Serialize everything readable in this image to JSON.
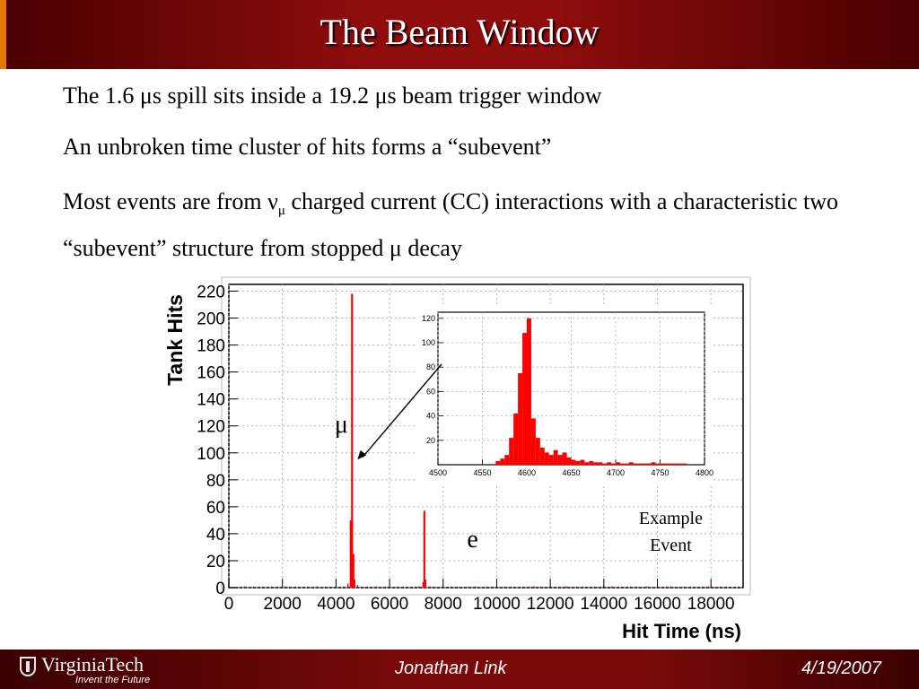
{
  "slide": {
    "title": "The Beam Window",
    "bullets": [
      {
        "parts": [
          "The 1.6 μs spill sits inside a 19.2 μs beam trigger window"
        ]
      },
      {
        "parts": [
          "An unbroken time cluster of hits forms a “subevent”"
        ]
      },
      {
        "parts": [
          "Most events are from ν",
          "μ",
          " charged current (CC) interactions with a characteristic  two “subevent” structure from stopped μ decay"
        ]
      }
    ]
  },
  "footer": {
    "logo_text": "VirginiaTech",
    "logo_tagline": "Invent the Future",
    "author": "Jonathan Link",
    "date": "4/19/2007"
  },
  "colors": {
    "title_bar": "#8f0d0d",
    "footer_bar": "#7a0a0a",
    "accent": "#e07a00",
    "series": "#ff0000",
    "arrow": "#000000"
  },
  "chart_data": [
    {
      "type": "bar",
      "title": "",
      "xlabel": "Hit Time (ns)",
      "ylabel": "Tank Hits",
      "xlim": [
        0,
        19200
      ],
      "ylim": [
        0,
        225
      ],
      "x_ticks": [
        0,
        2000,
        4000,
        6000,
        8000,
        10000,
        12000,
        14000,
        16000,
        18000
      ],
      "y_ticks": [
        0,
        20,
        40,
        60,
        80,
        100,
        120,
        140,
        160,
        180,
        200,
        220
      ],
      "grid": true,
      "series": [
        {
          "x": [
            600,
            2100,
            3300,
            4450,
            4550,
            4600,
            4650,
            4700,
            4800,
            5500,
            7100,
            7250,
            7300,
            7350,
            7500,
            9200,
            11400,
            12600,
            14300,
            15600,
            16500,
            17900
          ],
          "values": [
            1,
            1,
            1,
            3,
            50,
            218,
            25,
            6,
            2,
            1,
            1,
            4,
            57,
            6,
            1,
            1,
            1,
            1,
            1,
            1,
            1,
            1
          ]
        }
      ],
      "annotations": [
        {
          "text": "μ",
          "x": 4200,
          "y": 115
        },
        {
          "text": "e",
          "x": 9100,
          "y": 30
        },
        {
          "text": "Example\nEvent",
          "x": 16500,
          "y": 42
        }
      ]
    },
    {
      "type": "bar",
      "title": "",
      "xlim": [
        4500,
        4800
      ],
      "ylim": [
        0,
        125
      ],
      "x_ticks": [
        4500,
        4550,
        4600,
        4650,
        4700,
        4750,
        4800
      ],
      "y_ticks": [
        20,
        40,
        60,
        80,
        100,
        120
      ],
      "grid": true,
      "bin_width": 5,
      "series": [
        {
          "x": [
            4565,
            4570,
            4575,
            4580,
            4585,
            4590,
            4595,
            4600,
            4605,
            4610,
            4615,
            4620,
            4625,
            4630,
            4635,
            4640,
            4645,
            4650,
            4655,
            4660,
            4665,
            4670,
            4675,
            4680,
            4685,
            4690,
            4695,
            4700,
            4705,
            4710,
            4715,
            4720,
            4725,
            4730,
            4735,
            4740,
            4745,
            4750,
            4755,
            4760,
            4765,
            4770,
            4775
          ],
          "values": [
            3,
            5,
            8,
            22,
            42,
            75,
            108,
            120,
            38,
            22,
            14,
            10,
            8,
            12,
            8,
            10,
            6,
            4,
            3,
            4,
            2,
            3,
            2,
            2,
            1,
            2,
            1,
            2,
            1,
            1,
            2,
            1,
            1,
            1,
            1,
            2,
            1,
            1,
            1,
            1,
            1,
            1,
            1
          ]
        }
      ]
    }
  ]
}
